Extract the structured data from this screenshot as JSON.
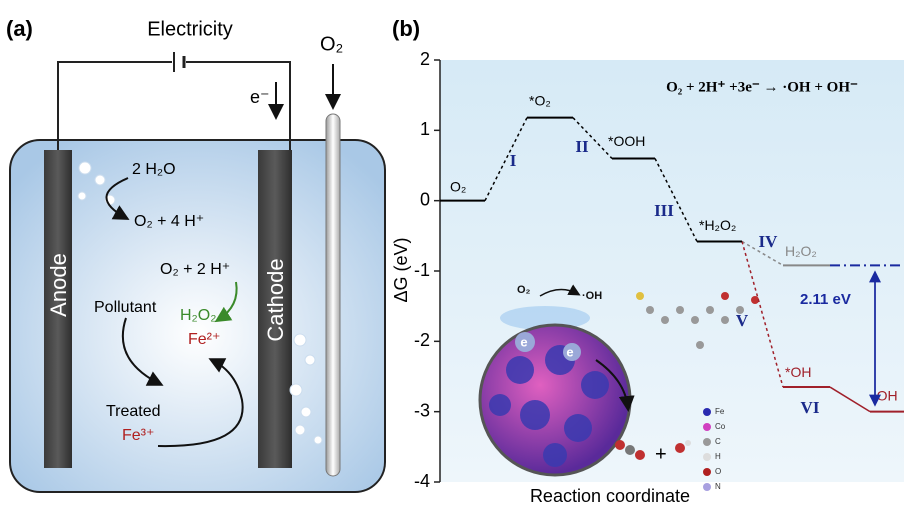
{
  "panel_a": {
    "label": "(a)",
    "electricity": "Electricity",
    "electron": "e⁻",
    "oxygen_feed": "O₂",
    "anode": "Anode",
    "cathode": "Cathode",
    "water": "2 H₂O",
    "anode_product": "O₂ + 4 H⁺",
    "cathode_reactant": "O₂ + 2 H⁺",
    "pollutant": "Pollutant",
    "hydrogen_peroxide": "H₂O₂",
    "fe2": "Fe²⁺",
    "treated": "Treated",
    "fe3": "Fe³⁺"
  },
  "chart_data": {
    "type": "levels",
    "label": "(b)",
    "equation": "O₂ + 2H⁺ +3e⁻ → ·OH + OH⁻",
    "ylabel": "ΔG (eV)",
    "xlabel": "Reaction coordinate",
    "categories": [
      "O₂",
      "*O₂",
      "*OOH",
      "*H₂O₂",
      "H₂O₂",
      "*OH",
      "·OH"
    ],
    "values": [
      0,
      1.18,
      0.6,
      -0.58,
      -0.92,
      -2.65,
      -3.0
    ],
    "colors": [
      "#000000",
      "#000000",
      "#000000",
      "#000000",
      "#888888",
      "#a0202a",
      "#a0202a"
    ],
    "ylim": [
      -4,
      2
    ],
    "yticks": [
      -4,
      -3,
      -2,
      -1,
      0,
      1,
      2
    ],
    "steps": [
      "I",
      "II",
      "III",
      "IV",
      "V",
      "VI"
    ],
    "gap_label": "2.11 eV",
    "inset": {
      "labels": [
        "O₂",
        "·OH",
        "e",
        "e"
      ],
      "legend": [
        "Fe",
        "Co",
        "C",
        "H",
        "O",
        "N"
      ]
    }
  }
}
